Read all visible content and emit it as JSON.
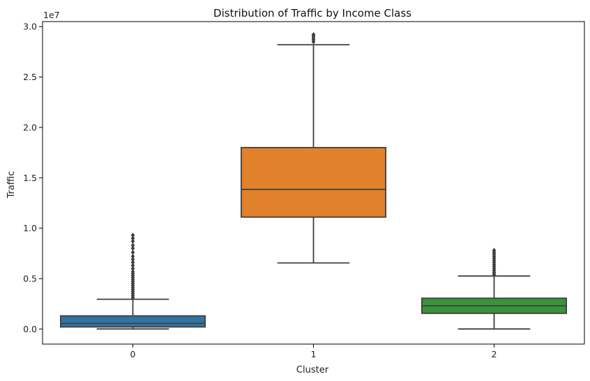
{
  "chart_data": {
    "type": "box",
    "title": "Distribution of Traffic by Income Class",
    "xlabel": "Cluster",
    "ylabel": "Traffic",
    "y_scale_label": "1e7",
    "ylim": [
      -0.15,
      3.05
    ],
    "y_ticks": [
      0.0,
      0.5,
      1.0,
      1.5,
      2.0,
      2.5,
      3.0
    ],
    "y_tick_labels": [
      "0.0",
      "0.5",
      "1.0",
      "1.5",
      "2.0",
      "2.5",
      "3.0"
    ],
    "categories": [
      "0",
      "1",
      "2"
    ],
    "grid": false,
    "boxes": [
      {
        "category": "0",
        "color": "#3274a1",
        "whisker_low": 0.0,
        "q1": 0.02,
        "median": 0.055,
        "q3": 0.13,
        "whisker_high": 0.295,
        "outliers": [
          0.31,
          0.33,
          0.35,
          0.37,
          0.39,
          0.41,
          0.43,
          0.45,
          0.47,
          0.49,
          0.51,
          0.53,
          0.55,
          0.57,
          0.6,
          0.63,
          0.66,
          0.69,
          0.72,
          0.76,
          0.8,
          0.83,
          0.87,
          0.9,
          0.93
        ]
      },
      {
        "category": "1",
        "color": "#e1812c",
        "whisker_low": 0.655,
        "q1": 1.11,
        "median": 1.385,
        "q3": 1.8,
        "whisker_high": 2.82,
        "outliers": [
          2.85,
          2.87,
          2.89,
          2.91,
          2.92
        ]
      },
      {
        "category": "2",
        "color": "#3a923a",
        "whisker_low": 0.0,
        "q1": 0.155,
        "median": 0.23,
        "q3": 0.305,
        "whisker_high": 0.525,
        "outliers": [
          0.54,
          0.56,
          0.58,
          0.6,
          0.62,
          0.64,
          0.66,
          0.68,
          0.7,
          0.72,
          0.74,
          0.76,
          0.78
        ]
      }
    ]
  }
}
